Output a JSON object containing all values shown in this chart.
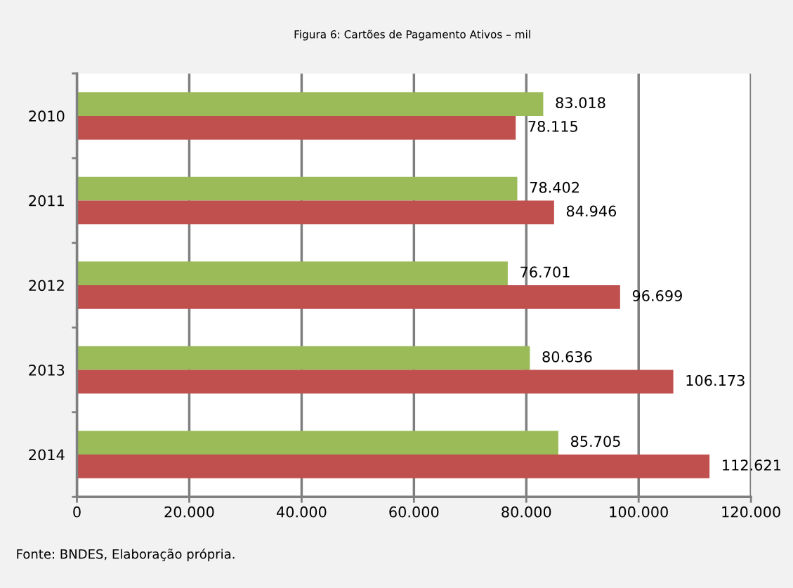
{
  "chart_data": {
    "type": "bar",
    "orientation": "horizontal",
    "title": "Figura 6: Cartões de Pagamento Ativos – mil",
    "categories": [
      "2010",
      "2011",
      "2012",
      "2013",
      "2014"
    ],
    "series": [
      {
        "color": "#9bbb59",
        "values": [
          83018,
          78402,
          76701,
          80636,
          85705
        ],
        "value_labels": [
          "83.018",
          "78.402",
          "76.701",
          "80.636",
          "85.705"
        ]
      },
      {
        "color": "#c0504d",
        "values": [
          78115,
          84946,
          96699,
          106173,
          112621
        ],
        "value_labels": [
          "78.115",
          "84.946",
          "96.699",
          "106.173",
          "112.621"
        ]
      }
    ],
    "xlim": [
      0,
      120000
    ],
    "xticks": [
      0,
      {
        "value": 20000,
        "label": "20.000"
      },
      {
        "value": 40000,
        "label": "40.000"
      },
      {
        "value": 60000,
        "label": "60.000"
      },
      {
        "value": 80000,
        "label": "80.000"
      },
      {
        "value": 100000,
        "label": "100.000"
      },
      {
        "value": 120000,
        "label": "120.000"
      }
    ],
    "grid": "x",
    "legend": false,
    "annotations": [
      "Fonte: BNDES, Elaboração própria."
    ]
  }
}
